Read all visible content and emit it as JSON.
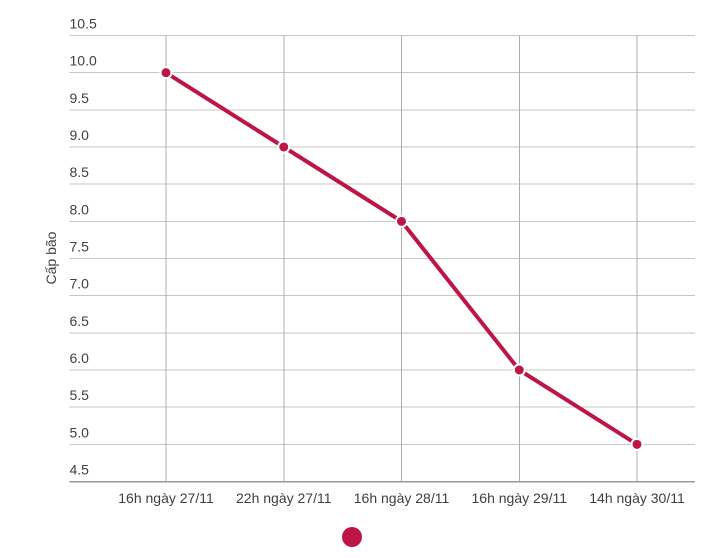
{
  "chart_data": {
    "type": "line",
    "title": "",
    "xlabel": "",
    "ylabel": "Cấp bão",
    "categories": [
      "16h ngày 27/11",
      "22h ngày 27/11",
      "16h ngày 28/11",
      "16h ngày 29/11",
      "14h ngày 30/11"
    ],
    "series": [
      {
        "name": "",
        "values": [
          10,
          9,
          8,
          6,
          5
        ]
      }
    ],
    "ylim": [
      4.5,
      10.5
    ],
    "ytick_step": 0.5,
    "ytick_decimals": 1,
    "ytick_labels": [
      "4.5",
      "5.0",
      "5.5",
      "6.0",
      "6.5",
      "7.0",
      "7.5",
      "8.0",
      "8.5",
      "9.0",
      "9.5",
      "10.0",
      "10.5"
    ],
    "grid": "on",
    "legend_position": "bottom-center",
    "legend_marker": "dot"
  },
  "colors": {
    "series": "#be1446",
    "marker_fill": "#be1446",
    "marker_border": "#ffffff",
    "grid_horizontal": "#c6c6c6",
    "grid_vertical": "#acacac",
    "axis_line": "#9a9a9a",
    "text": "#404040",
    "background": "#ffffff"
  }
}
